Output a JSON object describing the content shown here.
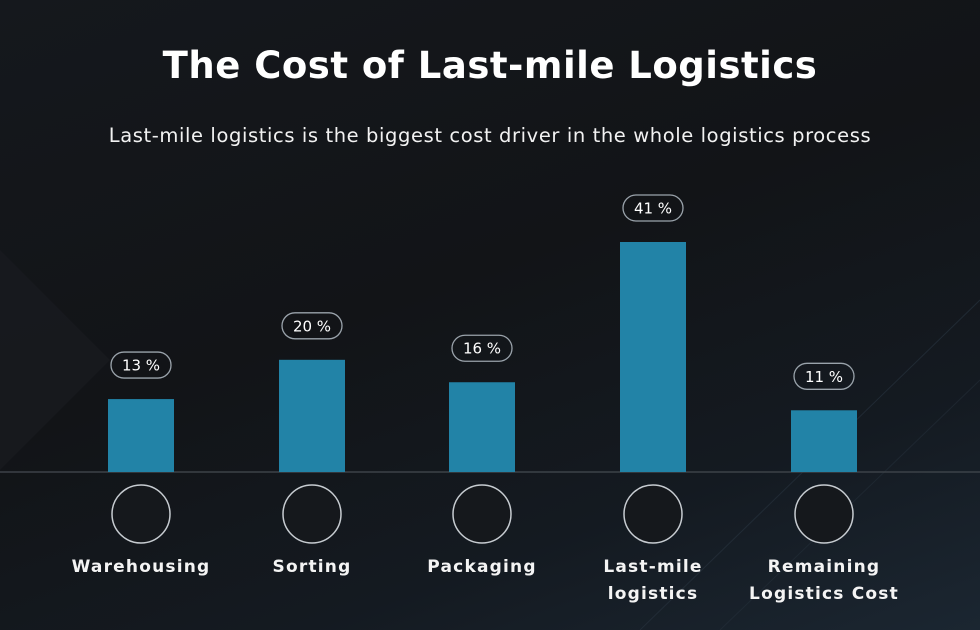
{
  "header": {
    "title": "The Cost of Last-mile Logistics",
    "subtitle": "Last-mile logistics is the biggest cost driver in the whole logistics process"
  },
  "colors": {
    "bar": "#2283a7",
    "background": "#15181c",
    "text": "#ffffff",
    "baseline": "#3c4248"
  },
  "categories": [
    {
      "label": "Warehousing",
      "icon": "warehouse-icon"
    },
    {
      "label": "Sorting",
      "icon": "sorting-icon"
    },
    {
      "label": "Packaging",
      "icon": "package-box-icon"
    },
    {
      "label": "Last-mile logistics",
      "icon": "delivery-clock-icon"
    },
    {
      "label": "Remaining Logistics Cost",
      "icon": "box-dollar-icon"
    }
  ],
  "chart_data": {
    "type": "bar",
    "title": "The Cost of Last-mile Logistics",
    "subtitle": "Last-mile logistics is the biggest cost driver in the whole logistics process",
    "categories": [
      "Warehousing",
      "Sorting",
      "Packaging",
      "Last-mile logistics",
      "Remaining Logistics Cost"
    ],
    "values": [
      13,
      20,
      16,
      41,
      11
    ],
    "value_labels": [
      "13 %",
      "20 %",
      "16 %",
      "41 %",
      "11 %"
    ],
    "unit": "%",
    "xlabel": "",
    "ylabel": "",
    "ylim": [
      0,
      41
    ],
    "grid": false,
    "legend": "none"
  }
}
